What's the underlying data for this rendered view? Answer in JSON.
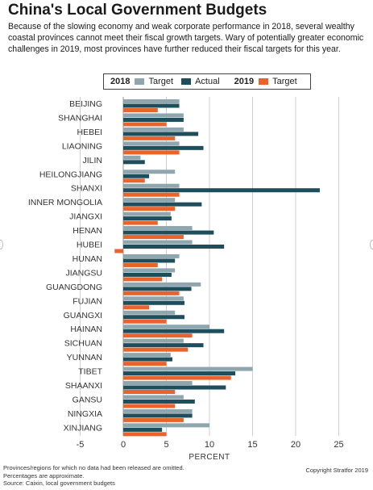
{
  "header": {
    "title": "China's Local Government Budgets",
    "subtitle": "Because of the slowing economy and weak corporate performance in 2018, several wealthy coastal provinces cannot meet their fiscal growth targets. Wary of potentially greater economic challenges in 2019, most provinces have further reduced their fiscal targets for this year."
  },
  "legend": {
    "year_2018": "2018",
    "target_2018": "Target",
    "actual_2018": "Actual",
    "year_2019": "2019",
    "target_2019": "Target"
  },
  "colors": {
    "target_2018": "#8fa6ae",
    "actual_2018": "#1e4d5c",
    "target_2019": "#e8642c"
  },
  "footer": {
    "footnote": "Provinces/regions for which no data had been released are omitted. Percentages are approximate.",
    "source": "Source: Caixin, local government budgets",
    "copyright": "Copyright Stratfor 2019"
  },
  "chart_data": {
    "type": "bar",
    "orientation": "horizontal",
    "title": "China's Local Government Budgets",
    "xlabel": "PERCENT",
    "xlim": [
      -5,
      28
    ],
    "xticks": [
      -5,
      0,
      5,
      10,
      15,
      20,
      25
    ],
    "categories": [
      "BEIJING",
      "SHANGHAI",
      "HEBEI",
      "LIAONING",
      "JILIN",
      "HEILONGJIANG",
      "SHANXI",
      "INNER MONGOLIA",
      "JIANGXI",
      "HENAN",
      "HUBEI",
      "HUNAN",
      "JIANGSU",
      "GUANGDONG",
      "FUJIAN",
      "GUANGXI",
      "HAINAN",
      "SICHUAN",
      "YUNNAN",
      "TIBET",
      "SHAANXI",
      "GANSU",
      "NINGXIA",
      "XINJIANG"
    ],
    "series": [
      {
        "name": "2018 Target",
        "values": [
          6.5,
          7,
          7,
          6.5,
          2,
          6,
          6.5,
          6,
          5.5,
          8,
          8,
          6.5,
          6,
          9,
          7,
          6,
          10,
          7,
          5.5,
          15,
          8,
          7,
          8,
          10
        ]
      },
      {
        "name": "2018 Actual",
        "values": [
          6.5,
          7,
          8.7,
          9.3,
          2.5,
          3,
          22.8,
          9.1,
          5.6,
          10.5,
          11.7,
          6,
          5.6,
          7.9,
          7.1,
          7.1,
          11.7,
          9.3,
          5.7,
          13,
          11.9,
          8.3,
          8,
          4.5
        ]
      },
      {
        "name": "2019 Target",
        "values": [
          4,
          5,
          6,
          6.5,
          null,
          2.5,
          6.5,
          6,
          4,
          7,
          -1,
          4,
          4.5,
          6.5,
          3,
          5,
          8,
          7.5,
          5,
          12.5,
          6,
          6,
          7,
          5
        ]
      }
    ]
  }
}
